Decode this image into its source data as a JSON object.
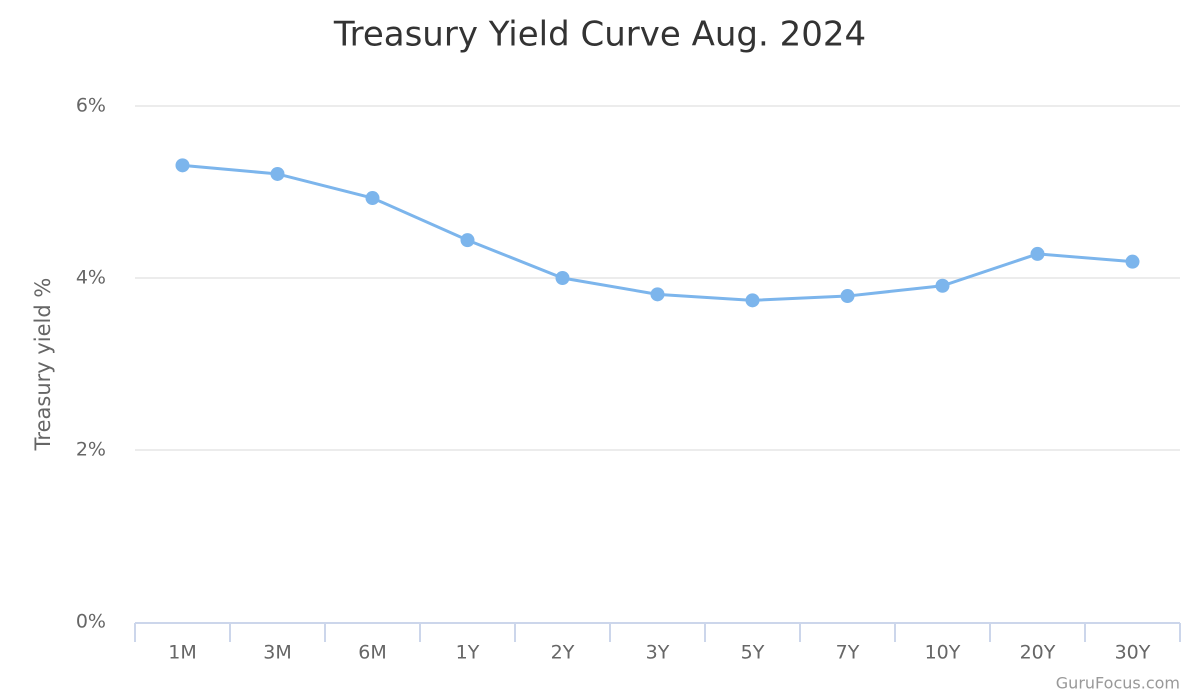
{
  "chart_data": {
    "type": "line",
    "title": "Treasury Yield Curve Aug. 2024",
    "y_axis_label": "Treasury yield %",
    "credit": "GuruFocus.com",
    "categories": [
      "1M",
      "3M",
      "6M",
      "1Y",
      "2Y",
      "3Y",
      "5Y",
      "7Y",
      "10Y",
      "20Y",
      "30Y"
    ],
    "series": [
      {
        "name": "Treasury yield",
        "color": "#7cb5ec",
        "values": [
          5.31,
          5.21,
          4.93,
          4.44,
          4.0,
          3.81,
          3.74,
          3.79,
          3.91,
          4.28,
          4.19
        ]
      }
    ],
    "ylim": [
      0,
      6
    ],
    "yticks": [
      {
        "value": 0,
        "label": "0%"
      },
      {
        "value": 2,
        "label": "2%"
      },
      {
        "value": 4,
        "label": "4%"
      },
      {
        "value": 6,
        "label": "6%"
      }
    ],
    "grid": true
  }
}
